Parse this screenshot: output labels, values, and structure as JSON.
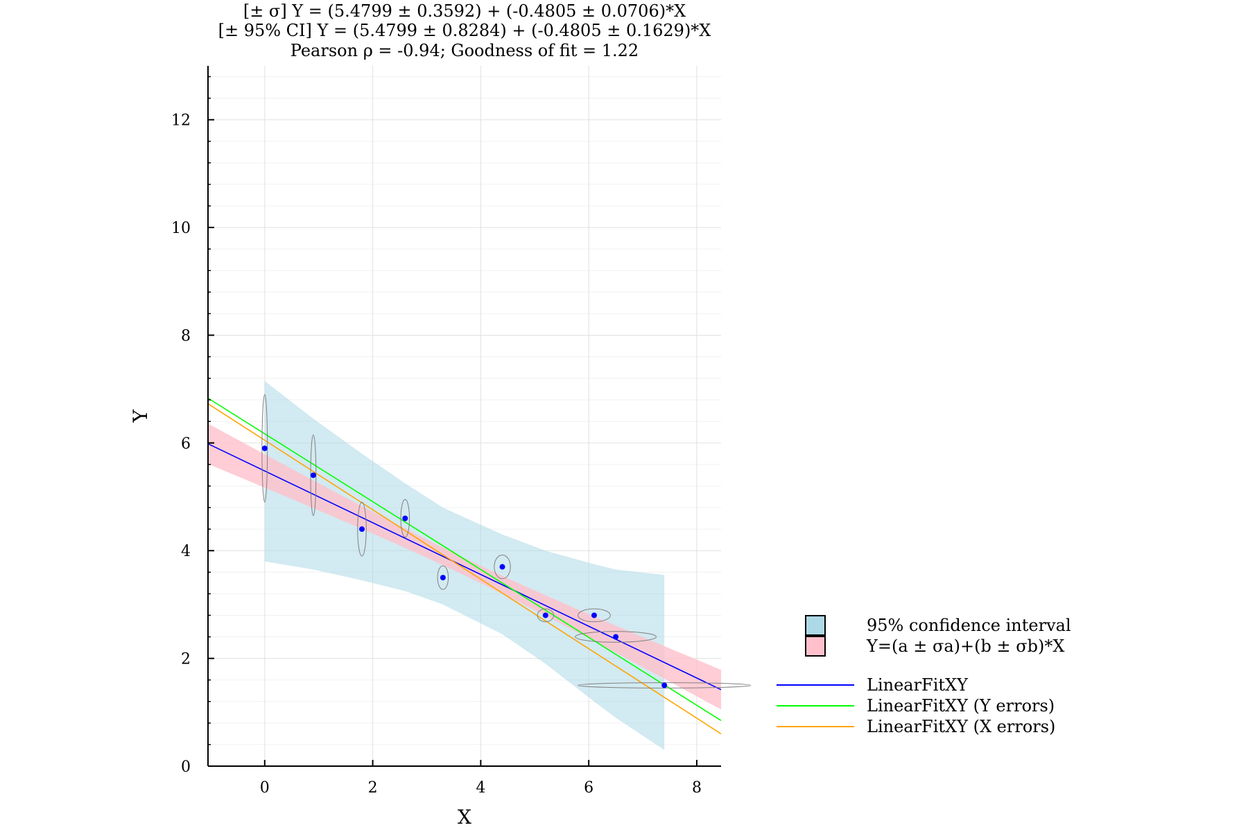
{
  "chart_data": {
    "type": "scatter",
    "title_lines": [
      "[± σ]  Y = (5.4799 ± 0.3592) + (-0.4805 ± 0.0706)*X",
      "[± 95% CI]  Y = (5.4799 ± 0.8284) + (-0.4805 ± 0.1629)*X",
      "Pearson ρ = -0.94; Goodness of fit = 1.22"
    ],
    "xlabel": "X",
    "ylabel": "Y",
    "xlim": [
      -1.05,
      8.45
    ],
    "ylim": [
      0,
      13
    ],
    "xticks": [
      0,
      2,
      4,
      6,
      8
    ],
    "yticks": [
      0,
      2,
      4,
      6,
      8,
      10,
      12
    ],
    "grid": true,
    "points": [
      {
        "x": 0.0,
        "y": 5.9,
        "sx": 0.05,
        "sy": 1.0
      },
      {
        "x": 0.9,
        "y": 5.4,
        "sx": 0.05,
        "sy": 0.75
      },
      {
        "x": 1.8,
        "y": 4.4,
        "sx": 0.08,
        "sy": 0.5
      },
      {
        "x": 2.6,
        "y": 4.6,
        "sx": 0.08,
        "sy": 0.35
      },
      {
        "x": 3.3,
        "y": 3.5,
        "sx": 0.1,
        "sy": 0.22
      },
      {
        "x": 4.4,
        "y": 3.7,
        "sx": 0.15,
        "sy": 0.22
      },
      {
        "x": 5.2,
        "y": 2.8,
        "sx": 0.15,
        "sy": 0.12
      },
      {
        "x": 6.1,
        "y": 2.8,
        "sx": 0.3,
        "sy": 0.12
      },
      {
        "x": 6.5,
        "y": 2.4,
        "sx": 0.75,
        "sy": 0.1
      },
      {
        "x": 7.4,
        "y": 1.5,
        "sx": 1.6,
        "sy": 0.05
      }
    ],
    "ci_band": {
      "x": [
        0.0,
        0.9,
        1.8,
        2.6,
        3.3,
        4.4,
        5.2,
        6.1,
        6.5,
        7.4
      ],
      "low": [
        3.8,
        3.65,
        3.45,
        3.25,
        3.0,
        2.45,
        1.9,
        1.2,
        0.9,
        0.3
      ],
      "high": [
        7.15,
        6.45,
        5.8,
        5.25,
        4.8,
        4.3,
        4.0,
        3.75,
        3.65,
        3.55
      ]
    },
    "sigma_band": {
      "a": 5.4799,
      "sa": 0.3592,
      "b": -0.4805,
      "sb": 0.0706
    },
    "lines": [
      {
        "name": "LinearFitXY",
        "a": 5.4799,
        "b": -0.4805,
        "color": "#0000ff"
      },
      {
        "name": "LinearFitXY (Y errors)",
        "a": 6.17,
        "b": -0.63,
        "color": "#00ff00"
      },
      {
        "name": "LinearFitXY (X errors)",
        "a": 6.05,
        "b": -0.645,
        "color": "#ffa500"
      }
    ],
    "legend_patches": [
      {
        "label": "95% confidence interval",
        "color": "#add8e6"
      },
      {
        "label": "Y=(a ± σa)+(b ± σb)*X",
        "color": "#ffc0cb"
      }
    ],
    "legend_position": "right",
    "colors": {
      "ci": "#add8e6",
      "sigma": "#ffc0cb",
      "points": "#0000ff",
      "ellipse": "#808080",
      "grid": "#e0e0e0"
    }
  }
}
